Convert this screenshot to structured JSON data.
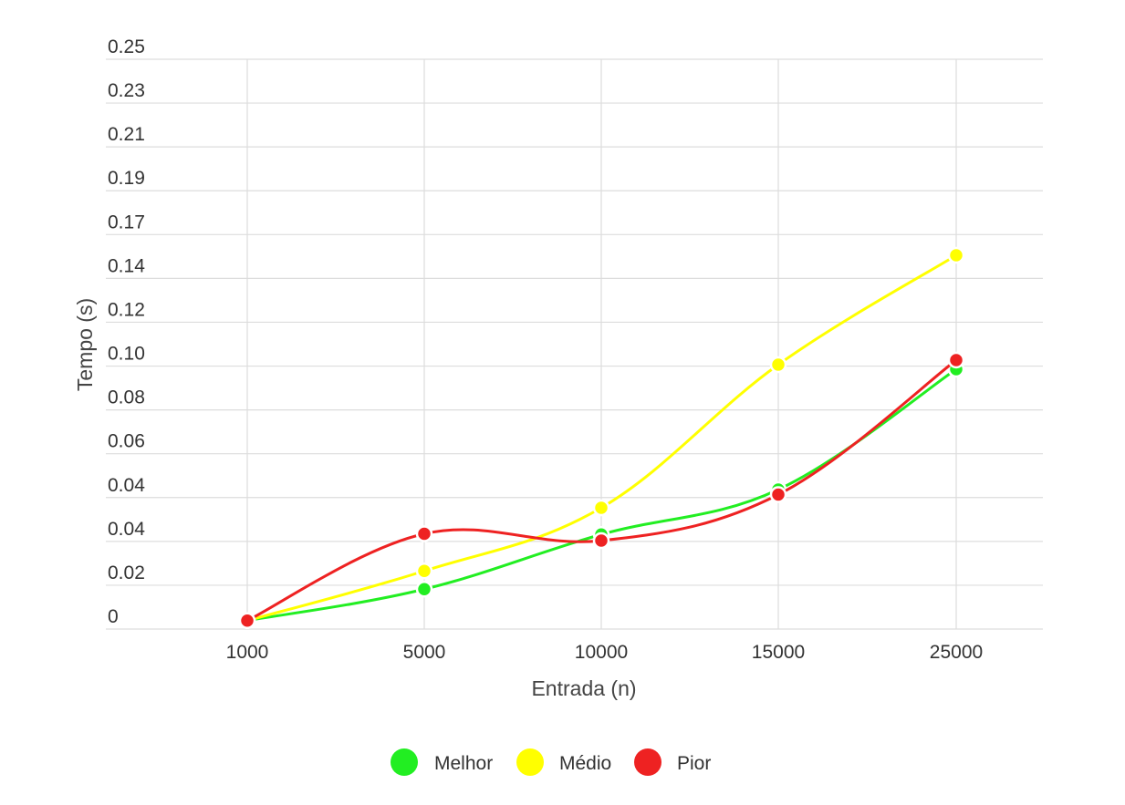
{
  "chart_data": {
    "type": "line",
    "categories": [
      "1000",
      "5000",
      "10000",
      "15000",
      "25000"
    ],
    "y_tick_labels": [
      "0",
      "0.02",
      "0.04",
      "0.04",
      "0.06",
      "0.08",
      "0.10",
      "0.12",
      "0.14",
      "0.17",
      "0.19",
      "0.21",
      "0.23",
      "0.25"
    ],
    "xlabel": "Entrada (n)",
    "ylabel": "Tempo (s)",
    "ylim": [
      0,
      0.25
    ],
    "grid": true,
    "legend_position": "bottom",
    "series": [
      {
        "name": "Melhor",
        "color": "#22ee22",
        "values": [
          0.0037,
          0.0175,
          0.0415,
          0.0612,
          0.114
        ]
      },
      {
        "name": "Médio",
        "color": "#ffff00",
        "values": [
          0.0037,
          0.0255,
          0.0532,
          0.116,
          0.164
        ]
      },
      {
        "name": "Pior",
        "color": "#ee2222",
        "values": [
          0.0037,
          0.0418,
          0.0388,
          0.059,
          0.118
        ]
      }
    ]
  }
}
